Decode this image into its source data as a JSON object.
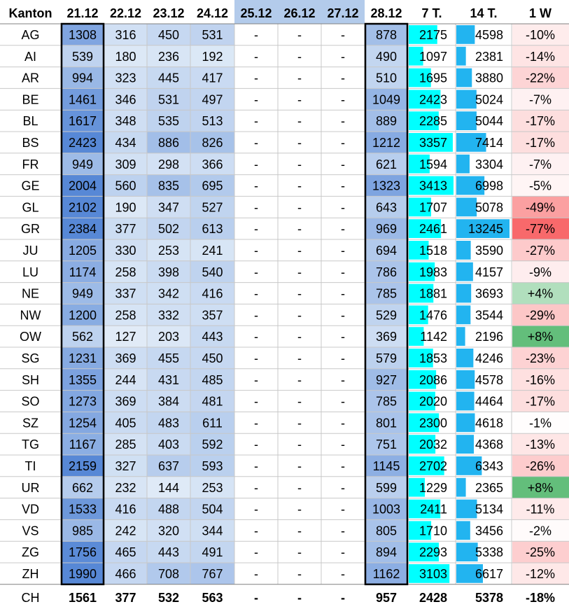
{
  "chart_data": {
    "type": "table",
    "columns": [
      "Kanton",
      "21.12",
      "22.12",
      "23.12",
      "24.12",
      "25.12",
      "26.12",
      "27.12",
      "28.12",
      "7 T.",
      "14 T.",
      "1 W"
    ],
    "rows": [
      {
        "kanton": "AG",
        "d21": 1308,
        "d22": 316,
        "d23": 450,
        "d24": 531,
        "d25": "-",
        "d26": "-",
        "d27": "-",
        "d28": 878,
        "t7": 2175,
        "t14": 4598,
        "w1": "-10%"
      },
      {
        "kanton": "AI",
        "d21": 539,
        "d22": 180,
        "d23": 236,
        "d24": 192,
        "d25": "-",
        "d26": "-",
        "d27": "-",
        "d28": 490,
        "t7": 1097,
        "t14": 2381,
        "w1": "-14%"
      },
      {
        "kanton": "AR",
        "d21": 994,
        "d22": 323,
        "d23": 445,
        "d24": 417,
        "d25": "-",
        "d26": "-",
        "d27": "-",
        "d28": 510,
        "t7": 1695,
        "t14": 3880,
        "w1": "-22%"
      },
      {
        "kanton": "BE",
        "d21": 1461,
        "d22": 346,
        "d23": 531,
        "d24": 497,
        "d25": "-",
        "d26": "-",
        "d27": "-",
        "d28": 1049,
        "t7": 2423,
        "t14": 5024,
        "w1": "-7%"
      },
      {
        "kanton": "BL",
        "d21": 1617,
        "d22": 348,
        "d23": 535,
        "d24": 513,
        "d25": "-",
        "d26": "-",
        "d27": "-",
        "d28": 889,
        "t7": 2285,
        "t14": 5044,
        "w1": "-17%"
      },
      {
        "kanton": "BS",
        "d21": 2423,
        "d22": 434,
        "d23": 886,
        "d24": 826,
        "d25": "-",
        "d26": "-",
        "d27": "-",
        "d28": 1212,
        "t7": 3357,
        "t14": 7414,
        "w1": "-17%"
      },
      {
        "kanton": "FR",
        "d21": 949,
        "d22": 309,
        "d23": 298,
        "d24": 366,
        "d25": "-",
        "d26": "-",
        "d27": "-",
        "d28": 621,
        "t7": 1594,
        "t14": 3304,
        "w1": "-7%"
      },
      {
        "kanton": "GE",
        "d21": 2004,
        "d22": 560,
        "d23": 835,
        "d24": 695,
        "d25": "-",
        "d26": "-",
        "d27": "-",
        "d28": 1323,
        "t7": 3413,
        "t14": 6998,
        "w1": "-5%"
      },
      {
        "kanton": "GL",
        "d21": 2102,
        "d22": 190,
        "d23": 347,
        "d24": 527,
        "d25": "-",
        "d26": "-",
        "d27": "-",
        "d28": 643,
        "t7": 1707,
        "t14": 5078,
        "w1": "-49%"
      },
      {
        "kanton": "GR",
        "d21": 2384,
        "d22": 377,
        "d23": 502,
        "d24": 613,
        "d25": "-",
        "d26": "-",
        "d27": "-",
        "d28": 969,
        "t7": 2461,
        "t14": 13245,
        "w1": "-77%"
      },
      {
        "kanton": "JU",
        "d21": 1205,
        "d22": 330,
        "d23": 253,
        "d24": 241,
        "d25": "-",
        "d26": "-",
        "d27": "-",
        "d28": 694,
        "t7": 1518,
        "t14": 3590,
        "w1": "-27%"
      },
      {
        "kanton": "LU",
        "d21": 1174,
        "d22": 258,
        "d23": 398,
        "d24": 540,
        "d25": "-",
        "d26": "-",
        "d27": "-",
        "d28": 786,
        "t7": 1983,
        "t14": 4157,
        "w1": "-9%"
      },
      {
        "kanton": "NE",
        "d21": 949,
        "d22": 337,
        "d23": 342,
        "d24": 416,
        "d25": "-",
        "d26": "-",
        "d27": "-",
        "d28": 785,
        "t7": 1881,
        "t14": 3693,
        "w1": "+4%"
      },
      {
        "kanton": "NW",
        "d21": 1200,
        "d22": 258,
        "d23": 332,
        "d24": 357,
        "d25": "-",
        "d26": "-",
        "d27": "-",
        "d28": 529,
        "t7": 1476,
        "t14": 3544,
        "w1": "-29%"
      },
      {
        "kanton": "OW",
        "d21": 562,
        "d22": 127,
        "d23": 203,
        "d24": 443,
        "d25": "-",
        "d26": "-",
        "d27": "-",
        "d28": 369,
        "t7": 1142,
        "t14": 2196,
        "w1": "+8%"
      },
      {
        "kanton": "SG",
        "d21": 1231,
        "d22": 369,
        "d23": 455,
        "d24": 450,
        "d25": "-",
        "d26": "-",
        "d27": "-",
        "d28": 579,
        "t7": 1853,
        "t14": 4246,
        "w1": "-23%"
      },
      {
        "kanton": "SH",
        "d21": 1355,
        "d22": 244,
        "d23": 431,
        "d24": 485,
        "d25": "-",
        "d26": "-",
        "d27": "-",
        "d28": 927,
        "t7": 2086,
        "t14": 4578,
        "w1": "-16%"
      },
      {
        "kanton": "SO",
        "d21": 1273,
        "d22": 369,
        "d23": 384,
        "d24": 481,
        "d25": "-",
        "d26": "-",
        "d27": "-",
        "d28": 785,
        "t7": 2020,
        "t14": 4464,
        "w1": "-17%"
      },
      {
        "kanton": "SZ",
        "d21": 1254,
        "d22": 405,
        "d23": 483,
        "d24": 611,
        "d25": "-",
        "d26": "-",
        "d27": "-",
        "d28": 801,
        "t7": 2300,
        "t14": 4618,
        "w1": "-1%"
      },
      {
        "kanton": "TG",
        "d21": 1167,
        "d22": 285,
        "d23": 403,
        "d24": 592,
        "d25": "-",
        "d26": "-",
        "d27": "-",
        "d28": 751,
        "t7": 2032,
        "t14": 4368,
        "w1": "-13%"
      },
      {
        "kanton": "TI",
        "d21": 2159,
        "d22": 327,
        "d23": 637,
        "d24": 593,
        "d25": "-",
        "d26": "-",
        "d27": "-",
        "d28": 1145,
        "t7": 2702,
        "t14": 6343,
        "w1": "-26%"
      },
      {
        "kanton": "UR",
        "d21": 662,
        "d22": 232,
        "d23": 144,
        "d24": 253,
        "d25": "-",
        "d26": "-",
        "d27": "-",
        "d28": 599,
        "t7": 1229,
        "t14": 2365,
        "w1": "+8%"
      },
      {
        "kanton": "VD",
        "d21": 1533,
        "d22": 416,
        "d23": 488,
        "d24": 504,
        "d25": "-",
        "d26": "-",
        "d27": "-",
        "d28": 1003,
        "t7": 2411,
        "t14": 5134,
        "w1": "-11%"
      },
      {
        "kanton": "VS",
        "d21": 985,
        "d22": 242,
        "d23": 320,
        "d24": 344,
        "d25": "-",
        "d26": "-",
        "d27": "-",
        "d28": 805,
        "t7": 1710,
        "t14": 3456,
        "w1": "-2%"
      },
      {
        "kanton": "ZG",
        "d21": 1756,
        "d22": 465,
        "d23": 443,
        "d24": 491,
        "d25": "-",
        "d26": "-",
        "d27": "-",
        "d28": 894,
        "t7": 2293,
        "t14": 5338,
        "w1": "-25%"
      },
      {
        "kanton": "ZH",
        "d21": 1990,
        "d22": 466,
        "d23": 708,
        "d24": 767,
        "d25": "-",
        "d26": "-",
        "d27": "-",
        "d28": 1162,
        "t7": 3103,
        "t14": 6617,
        "w1": "-12%"
      }
    ],
    "total": {
      "kanton": "CH",
      "d21": 1561,
      "d22": 377,
      "d23": 532,
      "d24": 563,
      "d25": "-",
      "d26": "-",
      "d27": "-",
      "d28": 957,
      "t7": 2428,
      "t14": 5378,
      "w1": "-18%"
    },
    "colors": {
      "heat_low": "#e3edf8",
      "heat_high": "#5788d6",
      "header_holiday": "#b3cbeb",
      "bar_7t": "#00ffff",
      "bar_14t": "#22b4f0",
      "pct_positive": "#63be7b",
      "pct_negative": "#f8696b",
      "gridline": "#c8c8c8",
      "text": "#000000"
    }
  }
}
